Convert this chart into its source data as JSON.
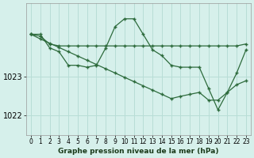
{
  "background_color": "#d6f0eb",
  "grid_color": "#b8ddd6",
  "line_color": "#2d6b3c",
  "xlabel": "Graphe pression niveau de la mer (hPa)",
  "xlabel_fontsize": 6.5,
  "ytick_fontsize": 7,
  "xtick_fontsize": 5.5,
  "xlim": [
    -0.5,
    23.5
  ],
  "ylim": [
    1021.5,
    1024.9
  ],
  "yticks": [
    1022,
    1023
  ],
  "xticks": [
    0,
    1,
    2,
    3,
    4,
    5,
    6,
    7,
    8,
    9,
    10,
    11,
    12,
    13,
    14,
    15,
    16,
    17,
    18,
    19,
    20,
    21,
    22,
    23
  ],
  "line1_x": [
    0,
    1,
    2,
    3,
    4,
    5,
    6,
    7,
    8,
    9,
    10,
    11,
    12,
    13,
    14,
    15,
    16,
    17,
    18,
    19,
    20,
    21,
    22,
    23
  ],
  "line1_y": [
    1024.1,
    1024.05,
    1023.85,
    1023.8,
    1023.8,
    1023.8,
    1023.8,
    1023.8,
    1023.8,
    1023.8,
    1023.8,
    1023.8,
    1023.8,
    1023.8,
    1023.8,
    1023.8,
    1023.8,
    1023.8,
    1023.8,
    1023.8,
    1023.8,
    1023.8,
    1023.8,
    1023.85
  ],
  "line2_x": [
    0,
    1,
    2,
    3,
    4,
    5,
    6,
    7,
    8,
    9,
    10,
    11,
    12,
    13,
    14,
    15,
    16,
    17,
    18,
    19,
    20,
    21,
    22,
    23
  ],
  "line2_y": [
    1024.1,
    1024.1,
    1023.75,
    1023.65,
    1023.3,
    1023.3,
    1023.25,
    1023.3,
    1023.75,
    1024.3,
    1024.5,
    1024.5,
    1024.1,
    1023.7,
    1023.55,
    1023.3,
    1023.25,
    1023.25,
    1023.25,
    1022.7,
    1022.15,
    1022.6,
    1023.1,
    1023.7
  ],
  "line3_x": [
    0,
    1,
    2,
    3,
    4,
    5,
    6,
    7,
    8,
    9,
    10,
    11,
    12,
    13,
    14,
    15,
    16,
    17,
    18,
    19,
    20,
    21,
    22,
    23
  ],
  "line3_y": [
    1024.1,
    1023.98,
    1023.87,
    1023.76,
    1023.65,
    1023.54,
    1023.43,
    1023.32,
    1023.21,
    1023.1,
    1022.99,
    1022.88,
    1022.77,
    1022.66,
    1022.55,
    1022.44,
    1022.5,
    1022.55,
    1022.6,
    1022.4,
    1022.4,
    1022.6,
    1022.8,
    1022.9
  ]
}
